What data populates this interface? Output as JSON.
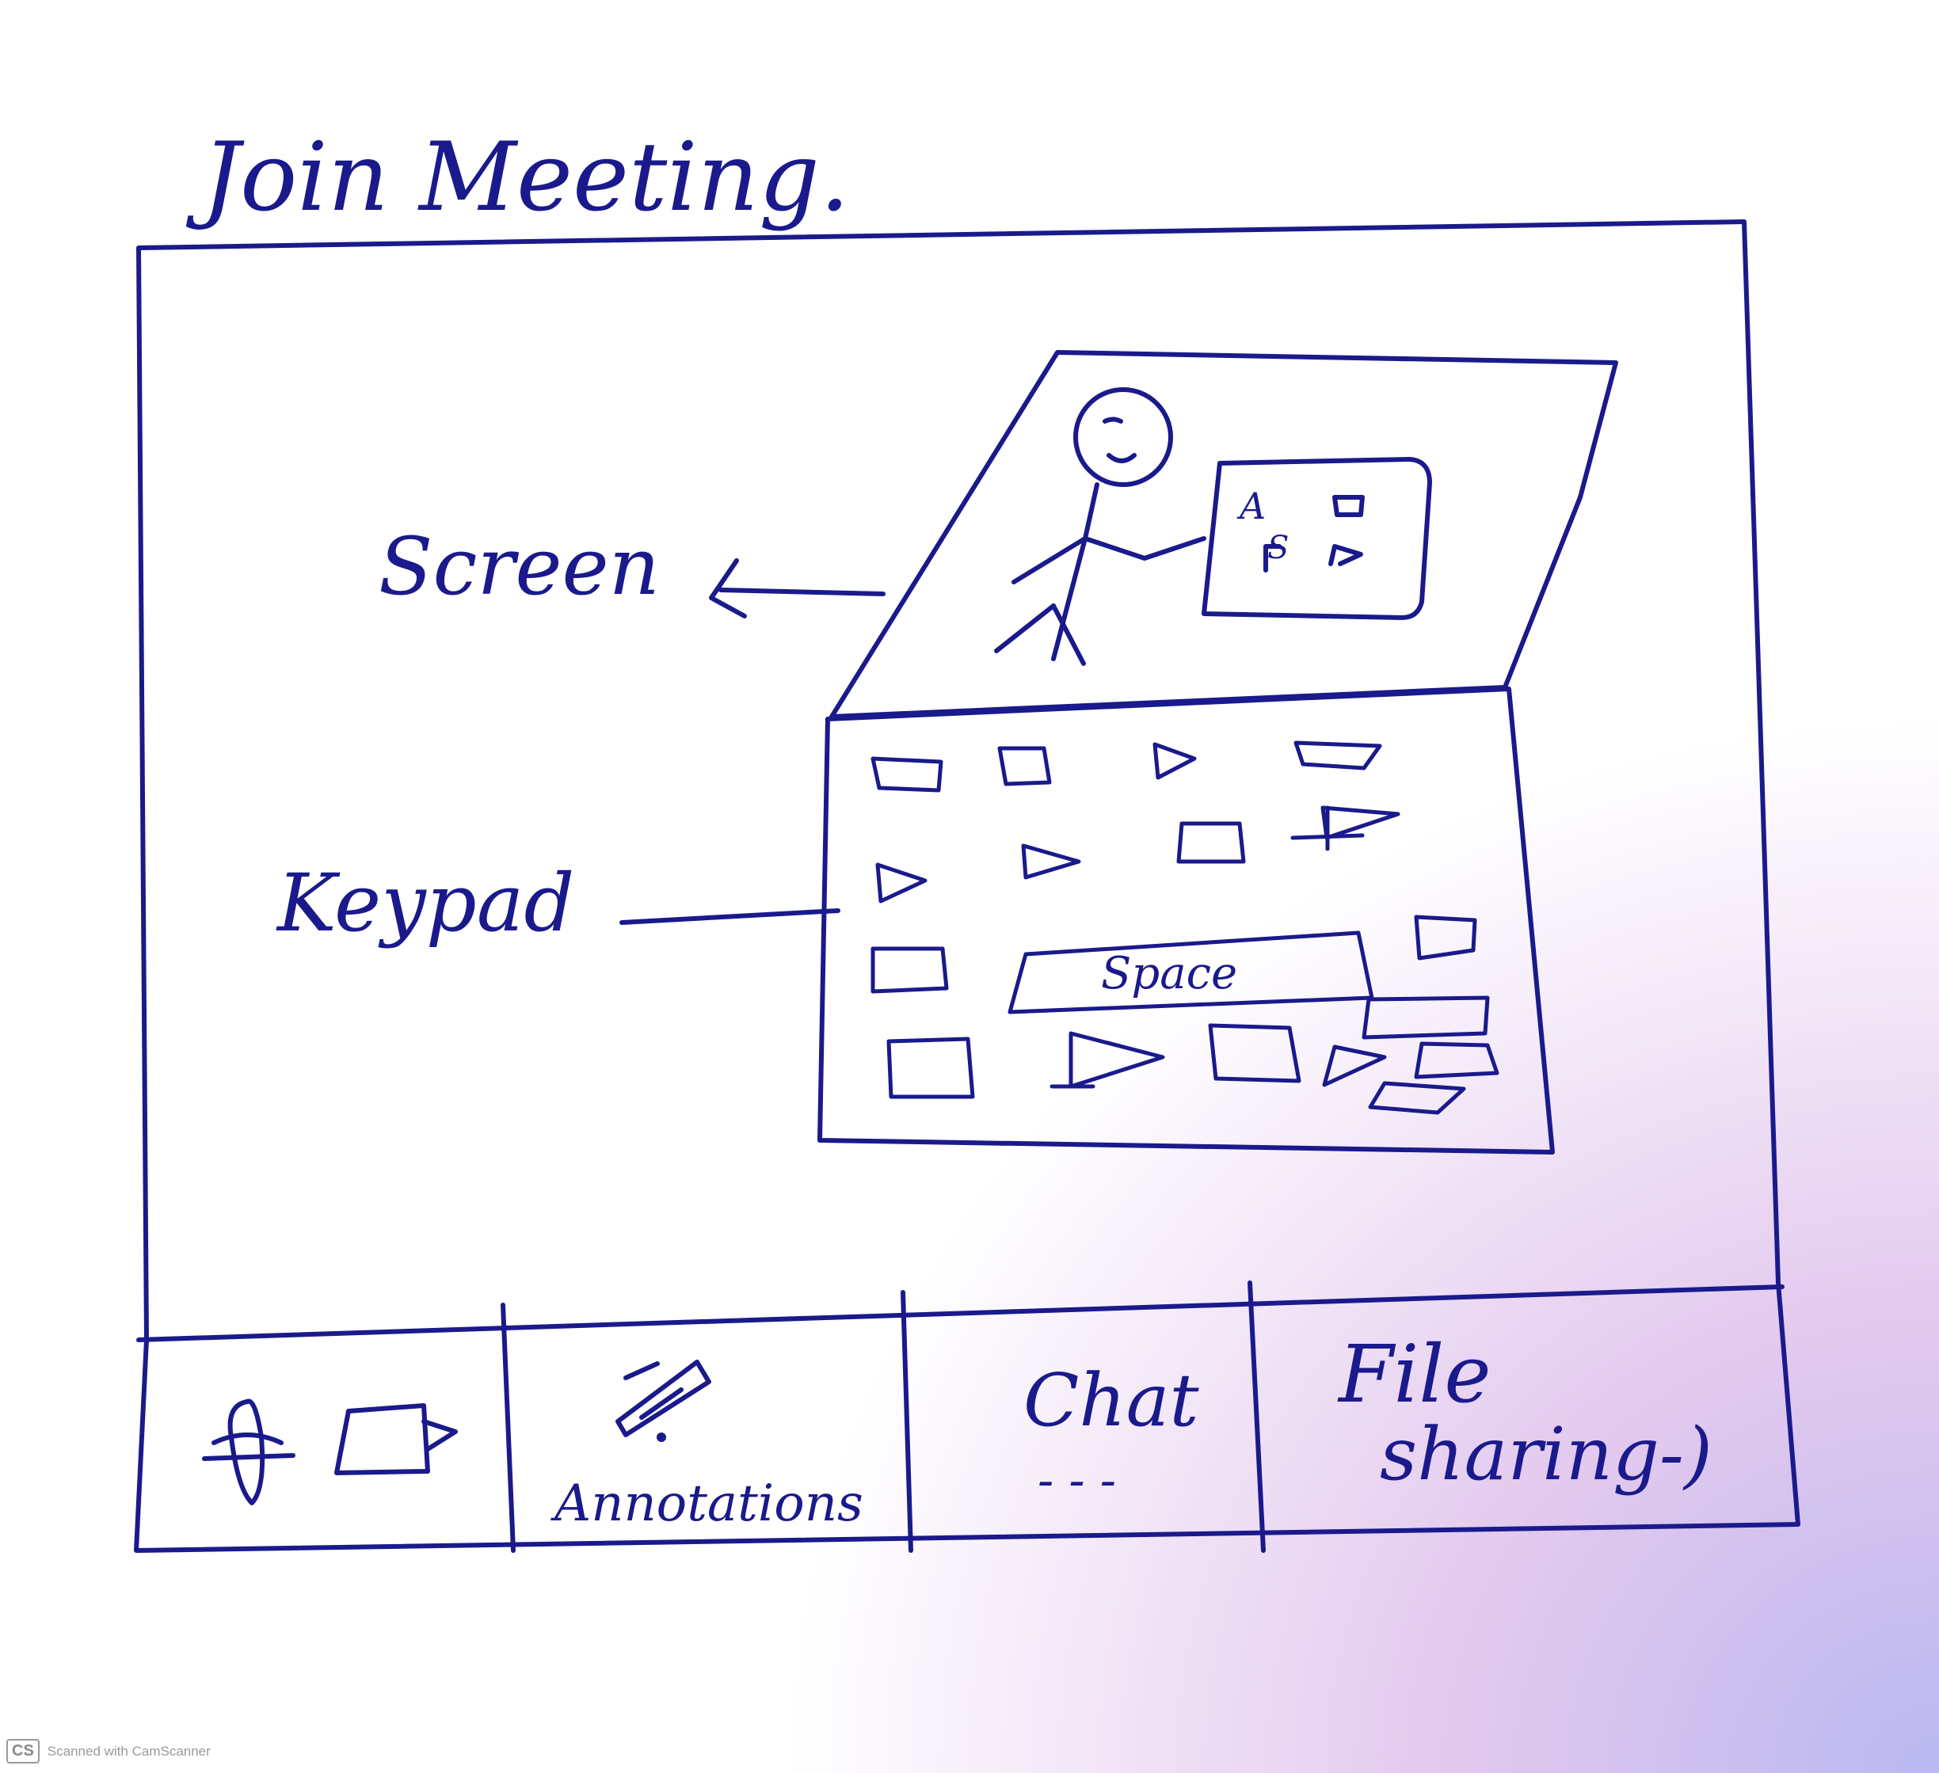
{
  "title": "Join Meeting.",
  "labels": {
    "screen": "Screen",
    "keypad": "Keypad",
    "space_key": "Space"
  },
  "toolbar": {
    "annotations": "Annotations",
    "chat": "Chat",
    "chat_marks": "- - -",
    "file_sharing_line1": "File",
    "file_sharing_line2": "sharing-)"
  },
  "screen_display": {
    "glyph_a": "A",
    "glyph_s": "S"
  },
  "watermark": {
    "logo": "CS",
    "text": "Scanned with CamScanner"
  },
  "colors": {
    "ink": "#1a1a8c",
    "paper": "#ffffff",
    "watermark": "#9a9a9a"
  },
  "icons": [
    "fan-icon",
    "video-camera-icon",
    "pen-icon",
    "stick-figure-icon"
  ]
}
